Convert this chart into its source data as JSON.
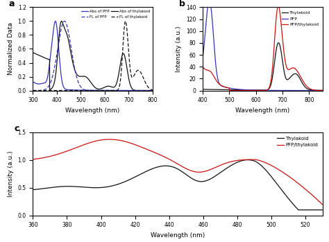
{
  "panel_a": {
    "title": "a",
    "xlabel": "Wavelength (nm)",
    "ylabel": "Normalized Data",
    "xlim": [
      300,
      800
    ],
    "ylim": [
      0,
      1.2
    ],
    "yticks": [
      0.0,
      0.2,
      0.4,
      0.6,
      0.8,
      1.0,
      1.2
    ],
    "xticks": [
      300,
      400,
      500,
      600,
      700,
      800
    ]
  },
  "panel_b": {
    "title": "b",
    "xlabel": "Wavelength (nm)",
    "ylabel": "Intensity (a.u.)",
    "xlim": [
      400,
      850
    ],
    "ylim": [
      0,
      140
    ],
    "yticks": [
      0,
      20,
      40,
      60,
      80,
      100,
      120,
      140
    ],
    "xticks": [
      400,
      500,
      600,
      700,
      800
    ]
  },
  "panel_c": {
    "title": "c",
    "xlabel": "Wavelength (nm)",
    "ylabel": "Intensity (a.u.)",
    "xlim": [
      360,
      530
    ],
    "ylim": [
      0.0,
      1.5
    ],
    "yticks": [
      0.0,
      0.5,
      1.0,
      1.5
    ],
    "xticks": [
      360,
      380,
      400,
      420,
      440,
      460,
      480,
      500,
      520
    ]
  },
  "colors": {
    "blue": "#3333bb",
    "black": "#111111",
    "red": "#cc1111"
  }
}
